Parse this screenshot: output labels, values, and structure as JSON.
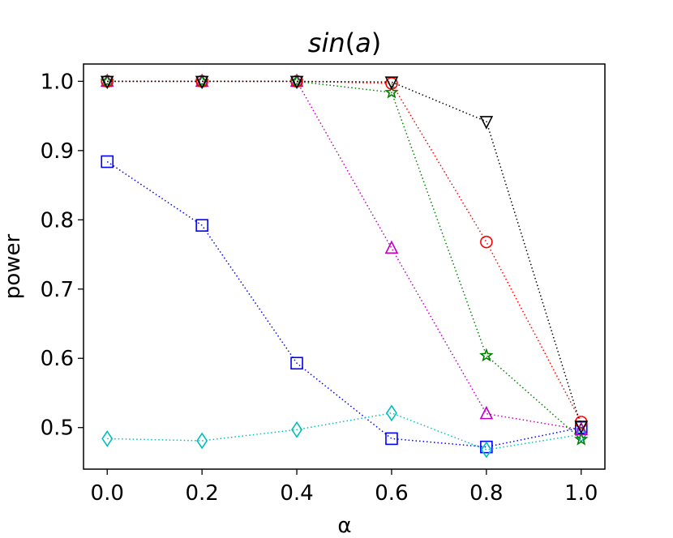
{
  "chart_data": {
    "type": "line",
    "title": "sin(a)",
    "title_main": "sin",
    "title_arg": "a",
    "xlabel": "α",
    "ylabel": "power",
    "x": [
      0.0,
      0.2,
      0.4,
      0.6,
      0.8,
      1.0
    ],
    "xlim": [
      -0.05,
      1.05
    ],
    "ylim": [
      0.44,
      1.025
    ],
    "xticks": [
      0.0,
      0.2,
      0.4,
      0.6,
      0.8,
      1.0
    ],
    "xtick_labels": [
      "0.0",
      "0.2",
      "0.4",
      "0.6",
      "0.8",
      "1.0"
    ],
    "yticks": [
      0.5,
      0.6,
      0.7,
      0.8,
      0.9,
      1.0
    ],
    "ytick_labels": [
      "0.5",
      "0.6",
      "0.7",
      "0.8",
      "0.9",
      "1.0"
    ],
    "grid": false,
    "series": [
      {
        "name": "blue-square",
        "color": "#0000ff",
        "marker": "square",
        "values": [
          0.884,
          0.792,
          0.593,
          0.484,
          0.472,
          0.5
        ]
      },
      {
        "name": "cyan-diamond",
        "color": "#00bfbf",
        "marker": "diamond",
        "values": [
          0.484,
          0.481,
          0.497,
          0.521,
          0.468,
          0.49
        ]
      },
      {
        "name": "magenta-triangle-up",
        "color": "#bf00bf",
        "marker": "triangle-up",
        "values": [
          1.0,
          1.0,
          1.0,
          0.759,
          0.52,
          0.497
        ]
      },
      {
        "name": "green-star",
        "color": "#008000",
        "marker": "star",
        "values": [
          1.0,
          1.0,
          1.0,
          0.984,
          0.604,
          0.483
        ]
      },
      {
        "name": "red-circle",
        "color": "#ff0000",
        "marker": "circle",
        "values": [
          1.0,
          1.0,
          1.0,
          0.997,
          0.768,
          0.508
        ]
      },
      {
        "name": "black-triangle-down",
        "color": "#000000",
        "marker": "triangle-down",
        "values": [
          1.0,
          1.0,
          1.0,
          0.999,
          0.942,
          0.502
        ]
      }
    ]
  }
}
